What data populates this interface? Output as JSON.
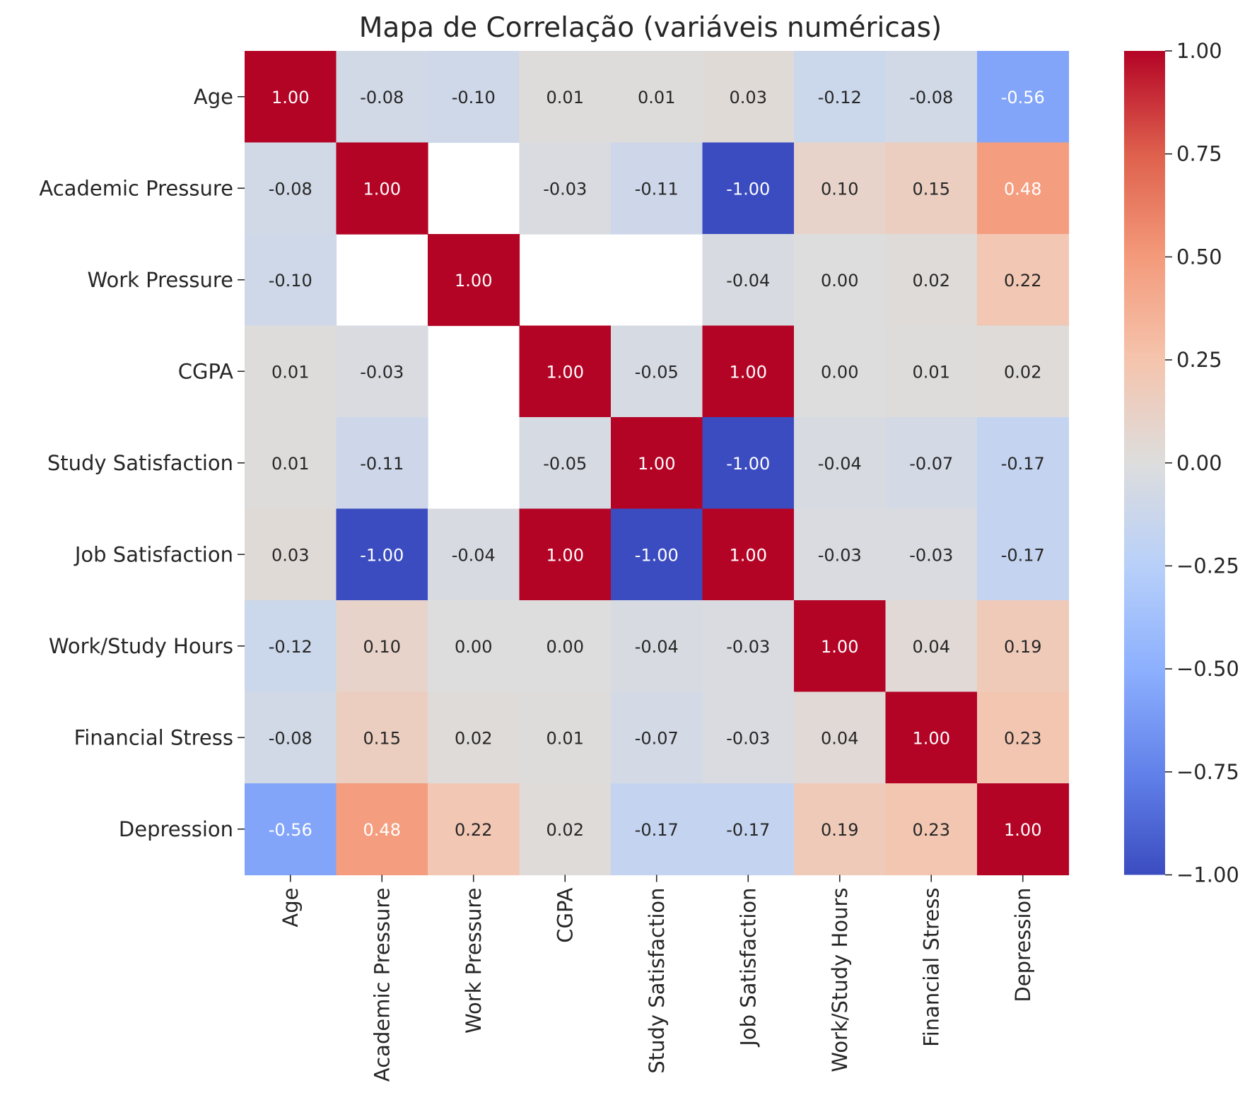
{
  "chart_data": {
    "type": "heatmap",
    "title": "Mapa de Correlação (variáveis numéricas)",
    "xlabel": "",
    "ylabel": "",
    "labels": [
      "Age",
      "Academic Pressure",
      "Work Pressure",
      "CGPA",
      "Study Satisfaction",
      "Job Satisfaction",
      "Work/Study Hours",
      "Financial Stress",
      "Depression"
    ],
    "matrix": [
      [
        1.0,
        -0.08,
        -0.1,
        0.01,
        0.01,
        0.03,
        -0.12,
        -0.08,
        -0.56
      ],
      [
        -0.08,
        1.0,
        null,
        -0.03,
        -0.11,
        -1.0,
        0.1,
        0.15,
        0.48
      ],
      [
        -0.1,
        null,
        1.0,
        null,
        null,
        -0.04,
        -0.0,
        0.02,
        0.22
      ],
      [
        0.01,
        -0.03,
        null,
        1.0,
        -0.05,
        1.0,
        0.0,
        0.01,
        0.02
      ],
      [
        0.01,
        -0.11,
        null,
        -0.05,
        1.0,
        -1.0,
        -0.04,
        -0.07,
        -0.17
      ],
      [
        0.03,
        -1.0,
        -0.04,
        1.0,
        -1.0,
        1.0,
        -0.03,
        -0.03,
        -0.17
      ],
      [
        -0.12,
        0.1,
        -0.0,
        0.0,
        -0.04,
        -0.03,
        1.0,
        0.04,
        0.19
      ],
      [
        -0.08,
        0.15,
        0.02,
        0.01,
        -0.07,
        -0.03,
        0.04,
        1.0,
        0.23
      ],
      [
        -0.56,
        0.48,
        0.22,
        0.02,
        -0.17,
        -0.17,
        0.19,
        0.23,
        1.0
      ]
    ],
    "value_format_decimals": 2,
    "colormap": "coolwarm",
    "vmin": -1.0,
    "vmax": 1.0,
    "colorbar_ticks": [
      1.0,
      0.75,
      0.5,
      0.25,
      0.0,
      -0.25,
      -0.5,
      -0.75,
      -1.0
    ],
    "colorbar_tick_labels": [
      "1.00",
      "0.75",
      "0.50",
      "0.25",
      "0.00",
      "−0.25",
      "−0.50",
      "−0.75",
      "−1.00"
    ],
    "grid": false,
    "colorbar": "right"
  }
}
